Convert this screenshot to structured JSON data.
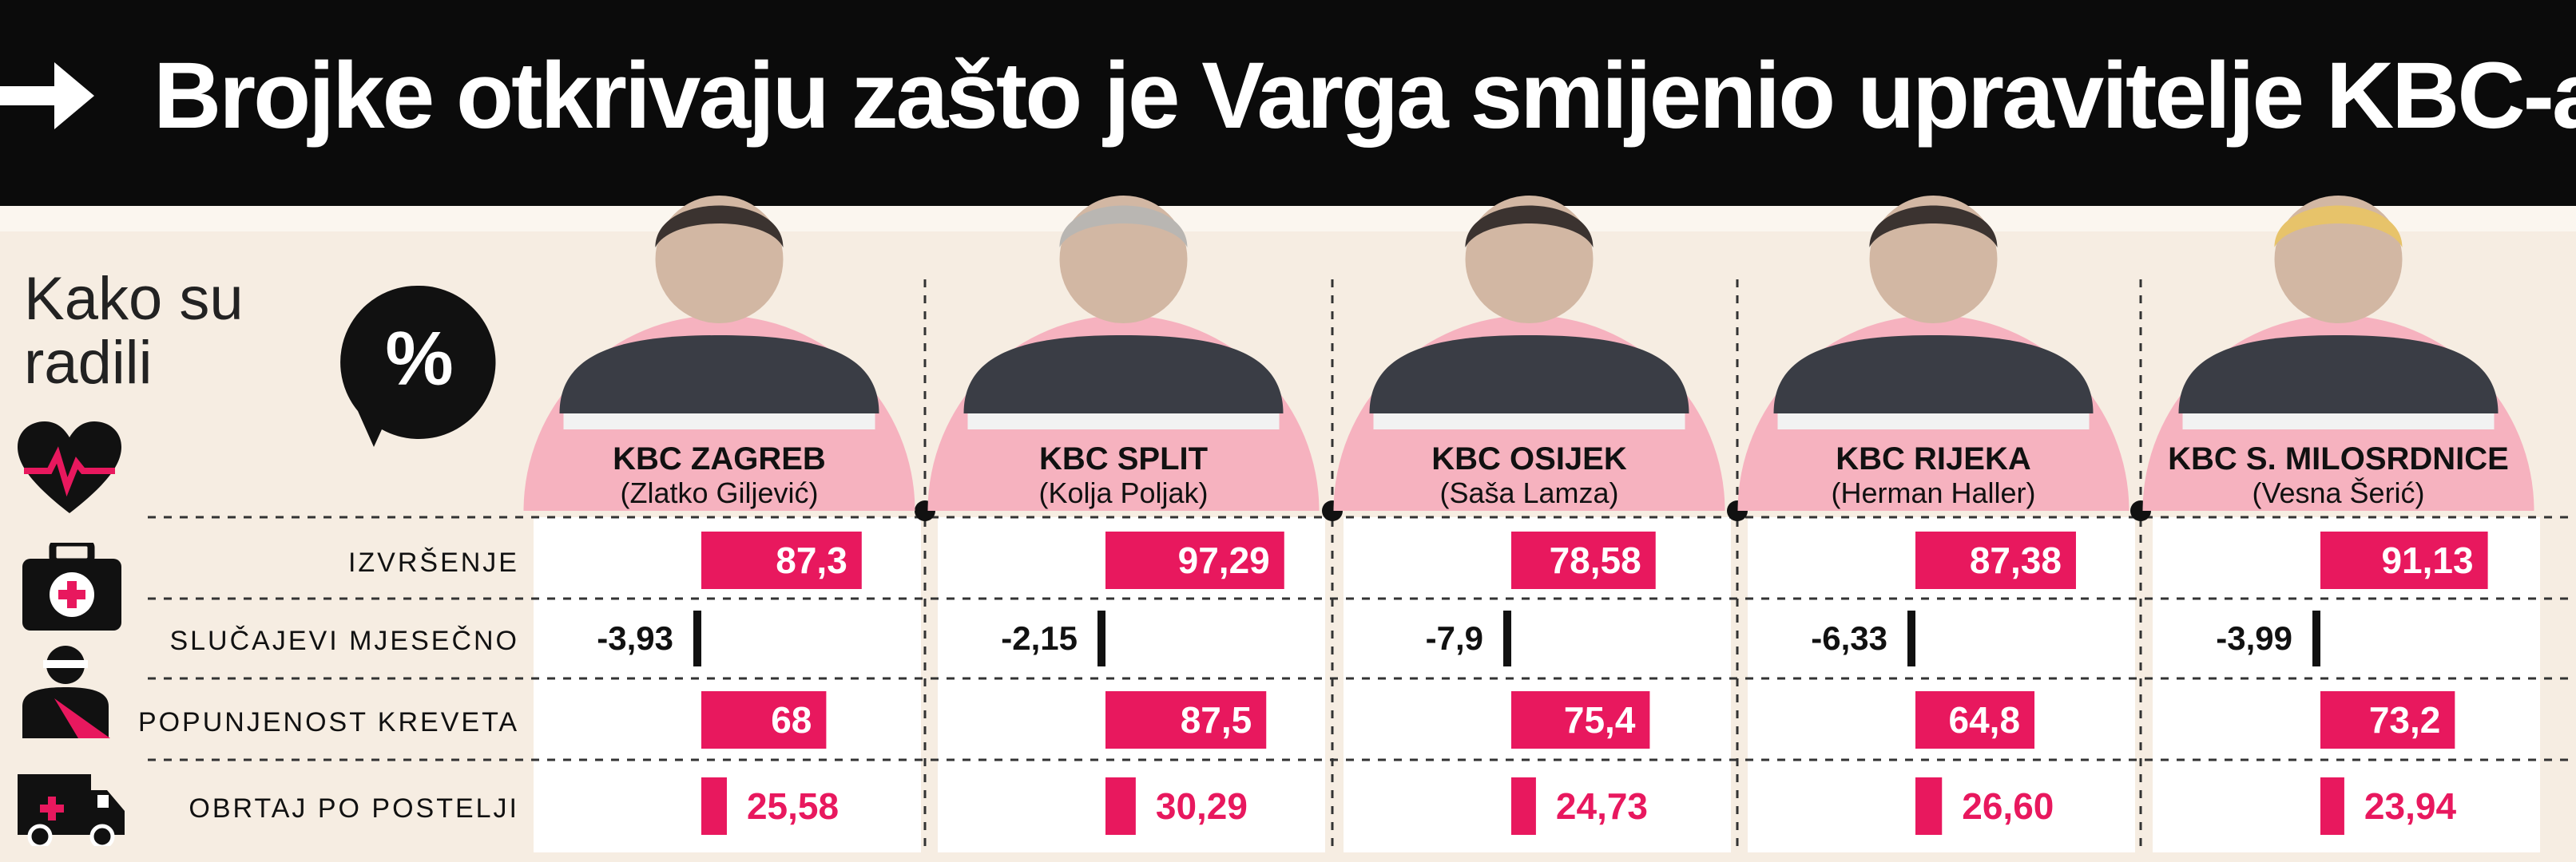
{
  "headline": "Brojke otkrivaju zašto je Varga smijenio upravitelje KBC-a",
  "intro": {
    "line1": "Kako su",
    "line2": "radili"
  },
  "percent_symbol": "%",
  "colors": {
    "accent": "#e8185e",
    "pink_arc": "#f6b2bf",
    "negative": "#111111",
    "background": "#f6ede2"
  },
  "icons": [
    "arrow-right-icon",
    "heart-pulse-icon",
    "medical-kit-icon",
    "patient-bed-icon",
    "ambulance-icon",
    "percent-bubble-icon"
  ],
  "chart_data": {
    "type": "bar",
    "title": "Brojke otkrivaju zašto je Varga smijenio upravitelje KBC-a",
    "hospitals": [
      {
        "name": "KBC ZAGREB",
        "director": "(Zlatko Giljević)"
      },
      {
        "name": "KBC SPLIT",
        "director": "(Kolja Poljak)"
      },
      {
        "name": "KBC OSIJEK",
        "director": "(Saša Lamza)"
      },
      {
        "name": "KBC RIJEKA",
        "director": "(Herman Haller)"
      },
      {
        "name": "KBC S. MILOSRDNICE",
        "director": "(Vesna Šerić)"
      }
    ],
    "metrics": [
      {
        "name": "IZVRŠENJE",
        "values": [
          87.3,
          97.29,
          78.58,
          87.38,
          91.13
        ],
        "labels": [
          "87,3",
          "97,29",
          "78,58",
          "87,38",
          "91,13"
        ]
      },
      {
        "name": "SLUČAJEVI MJESEČNO",
        "values": [
          -3.93,
          -2.15,
          -7.9,
          -6.33,
          -3.99
        ],
        "labels": [
          "-3,93",
          "-2,15",
          "-7,9",
          "-6,33",
          "-3,99"
        ]
      },
      {
        "name": "POPUNJENOST KREVETA",
        "values": [
          68,
          87.5,
          75.4,
          64.8,
          73.2
        ],
        "labels": [
          "68",
          "87,5",
          "75,4",
          "64,8",
          "73,2"
        ]
      },
      {
        "name": "OBRTAJ PO POSTELJI",
        "values": [
          25.58,
          30.29,
          24.73,
          26.6,
          23.94
        ],
        "labels": [
          "25,58",
          "30,29",
          "24,73",
          "26,60",
          "23,94"
        ]
      }
    ]
  }
}
